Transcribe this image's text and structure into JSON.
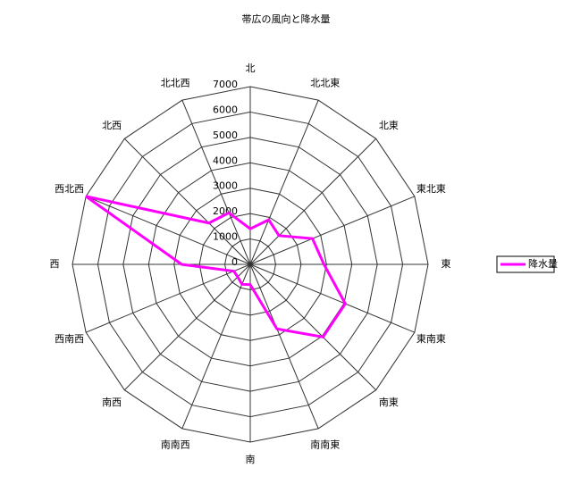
{
  "chart_data": {
    "type": "radar",
    "title": "帯広の風向と降水量",
    "categories": [
      "北",
      "北北東",
      "北東",
      "東北東",
      "東",
      "東南東",
      "南東",
      "南南東",
      "南",
      "南南西",
      "南西",
      "西南西",
      "西",
      "西北西",
      "北西",
      "北北西"
    ],
    "series": [
      {
        "name": "降水量",
        "color": "#ff00ff",
        "values": [
          1400,
          1900,
          1600,
          2650,
          2900,
          4050,
          4050,
          2750,
          800,
          850,
          700,
          700,
          2700,
          7000,
          2300,
          2200
        ]
      }
    ],
    "ylim": [
      0,
      7000
    ],
    "yticks": [
      0,
      1000,
      2000,
      3000,
      4000,
      5000,
      6000,
      7000
    ],
    "grid": true,
    "legend": "right"
  }
}
